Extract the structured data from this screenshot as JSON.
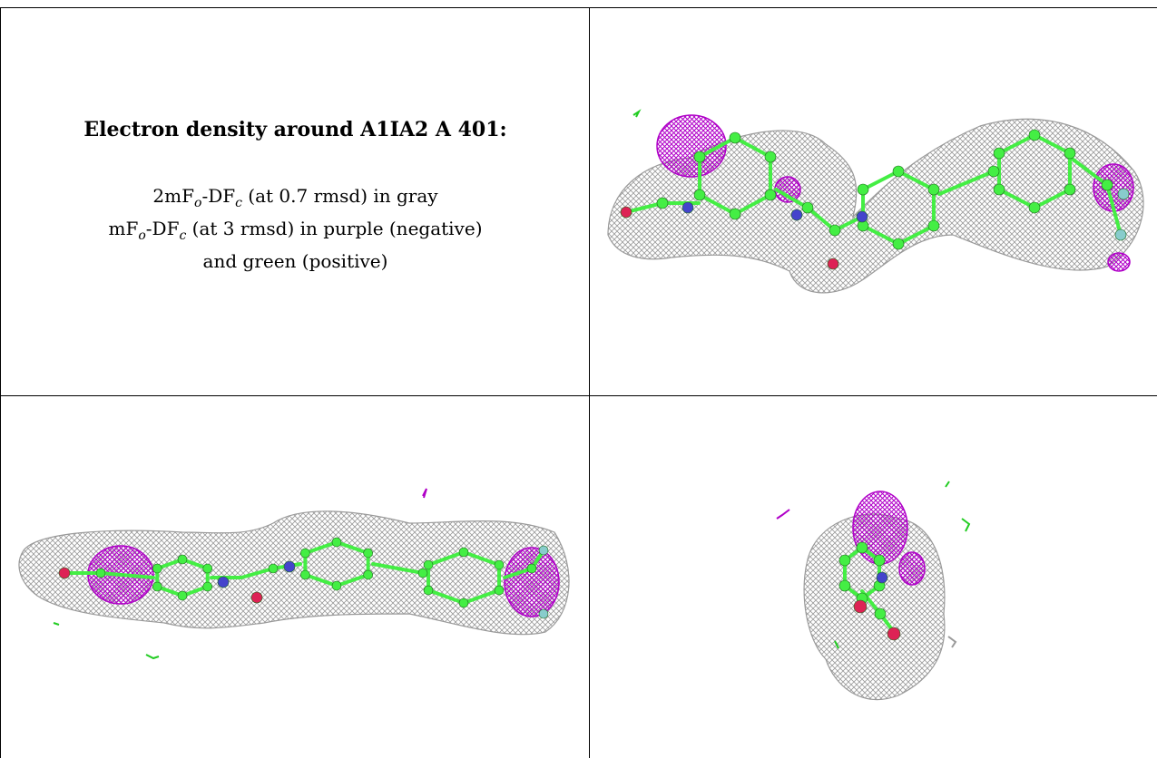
{
  "caption": {
    "title": "Electron density around A1IA2 A 401:",
    "line1": {
      "prefix": "2mF",
      "sub1": "o",
      "mid": "-DF",
      "sub2": "c",
      "suffix": " (at 0.7 rmsd) in gray"
    },
    "line2": {
      "prefix": "mF",
      "sub1": "o",
      "mid": "-DF",
      "sub2": "c",
      "suffix": " (at 3 rmsd) in purple (negative)"
    },
    "line3": "and green (positive)"
  },
  "colors": {
    "density_2fofc": "#9a9a9a",
    "fofc_negative": "#b000c8",
    "fofc_positive": "#22cc22",
    "carbon": "#44ee44",
    "nitrogen": "#4444cc",
    "oxygen": "#dd2255",
    "fluorine": "#88cccc"
  },
  "views": [
    {
      "name": "view-top-right"
    },
    {
      "name": "view-bottom-left"
    },
    {
      "name": "view-bottom-right"
    }
  ]
}
